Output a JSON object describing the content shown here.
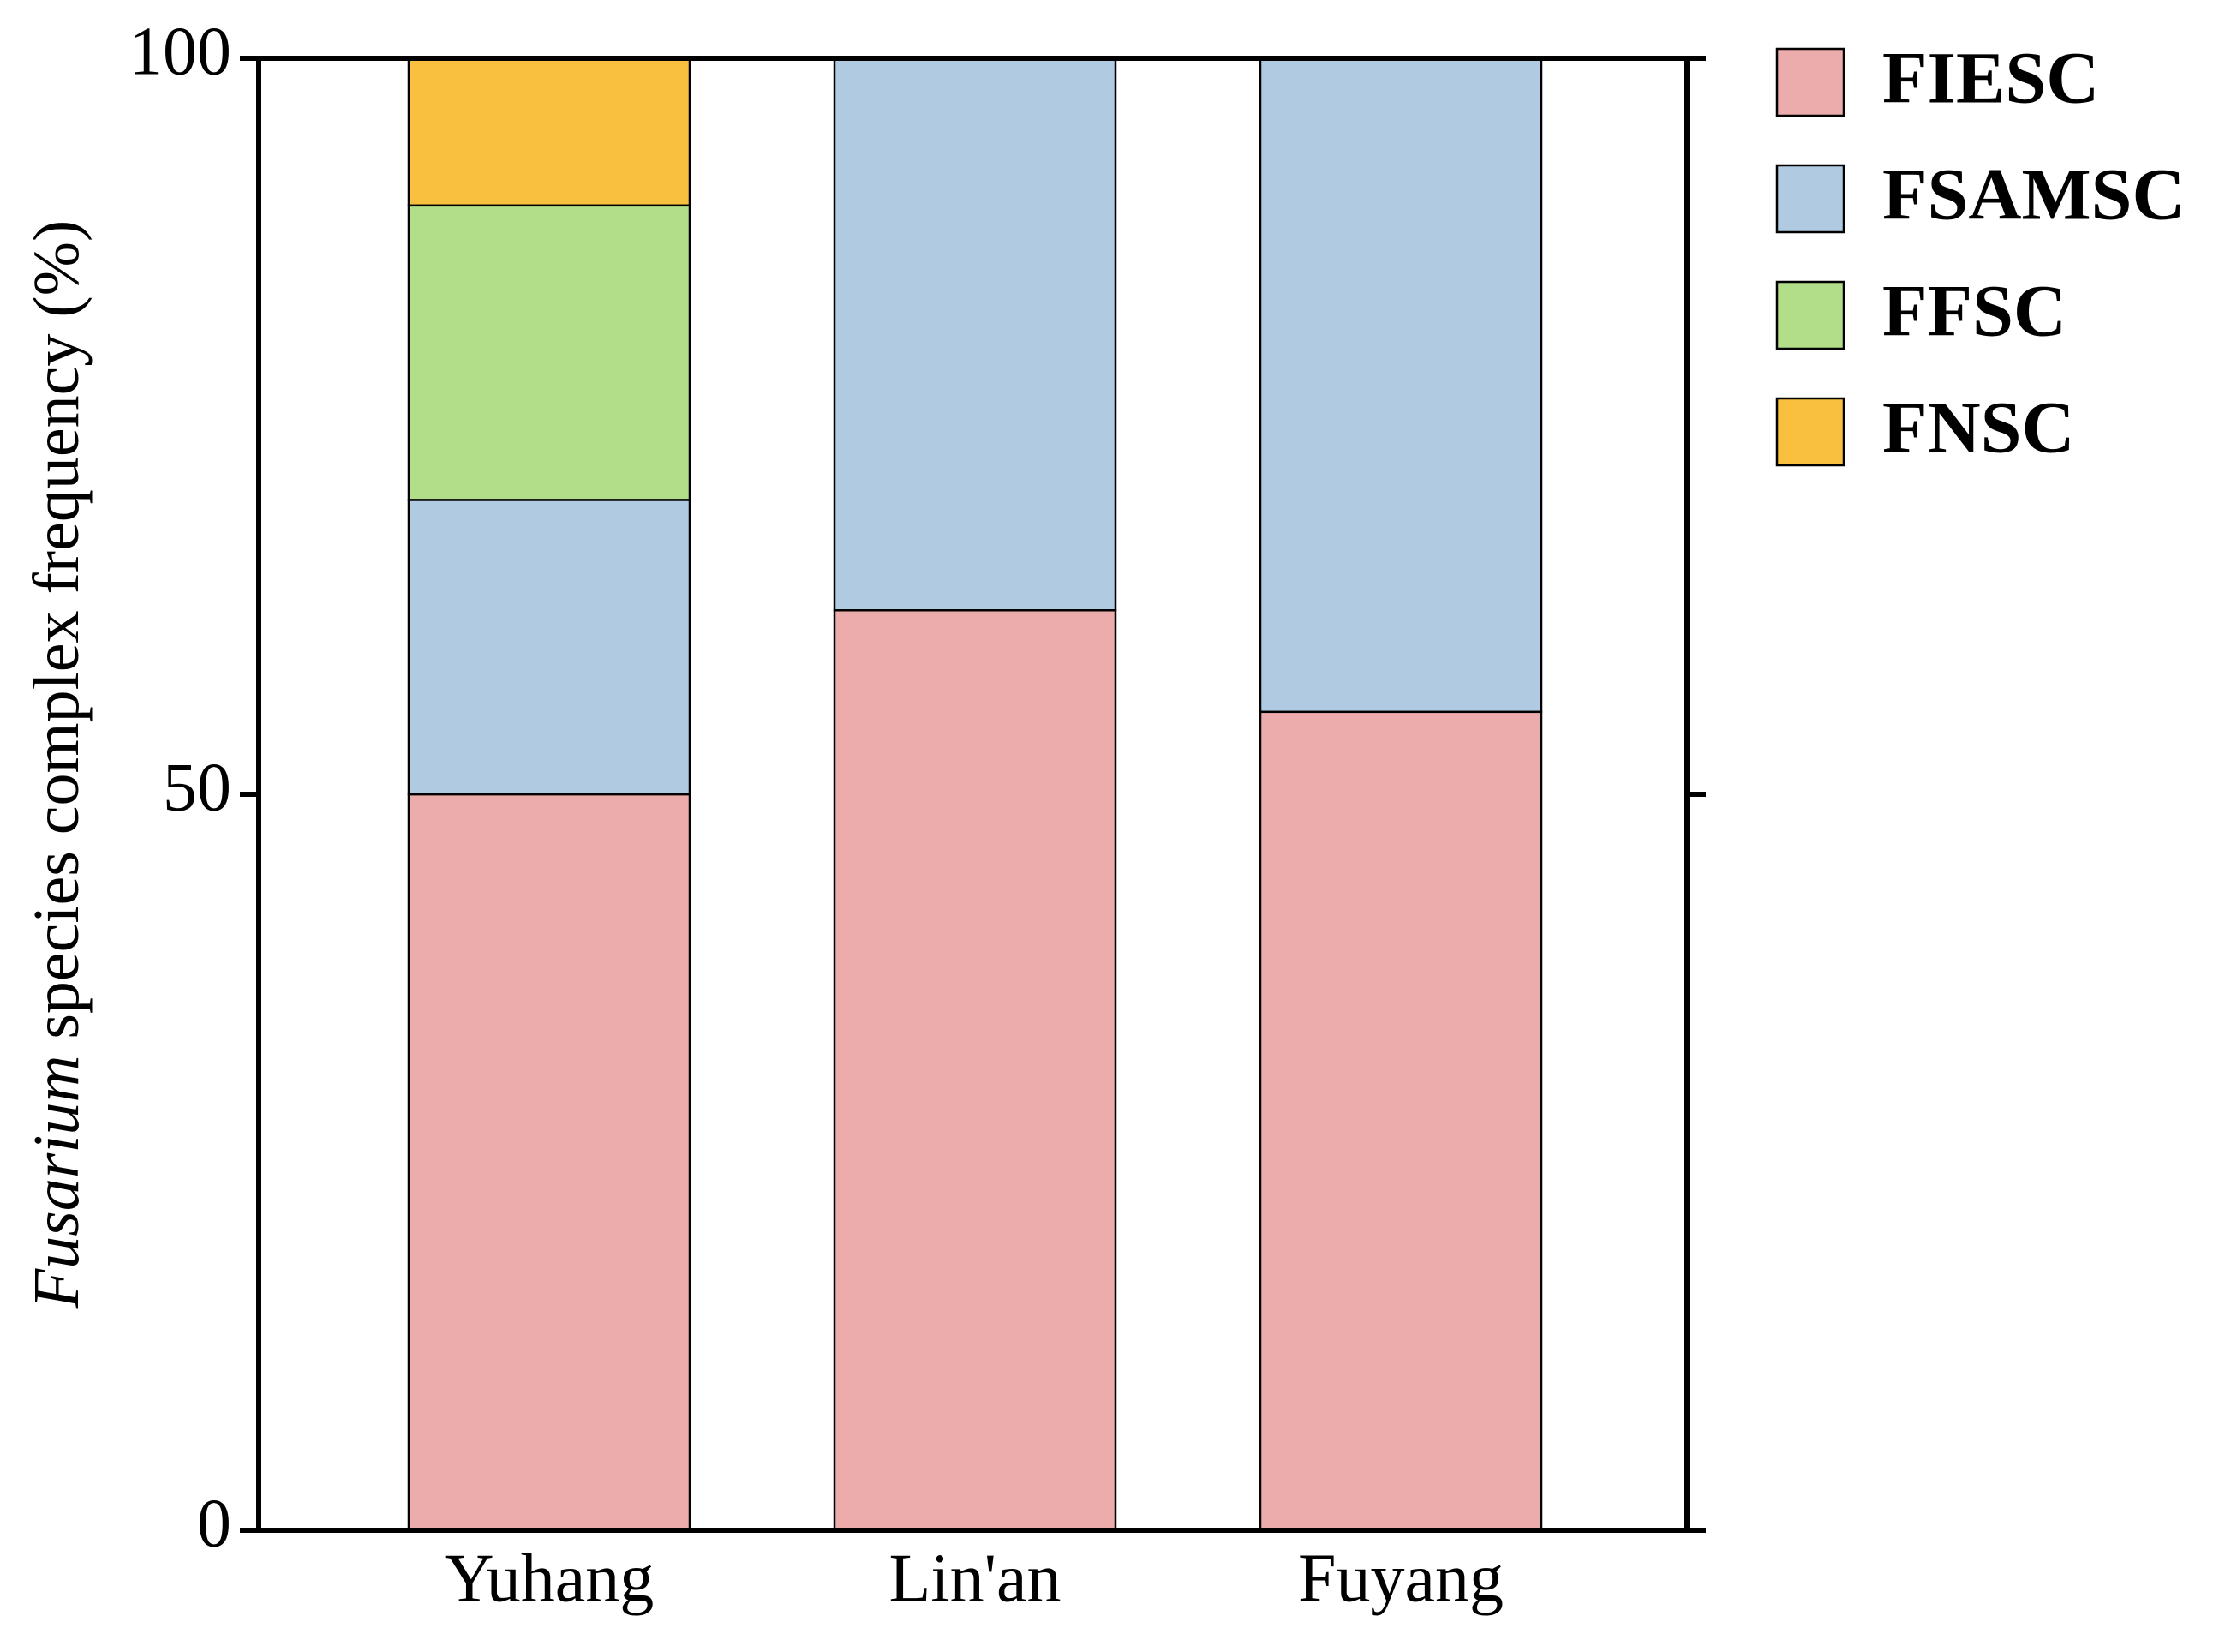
{
  "chart_data": {
    "type": "stacked-bar",
    "y_label_italic": "Fusarium",
    "y_label": "species complex frequency (%)",
    "categories": [
      "Yuhang",
      "Lin'an",
      "Fuyang"
    ],
    "series": [
      {
        "name": "FIESC",
        "color": "#ecacac",
        "values": [
          50,
          62.5,
          55.6
        ]
      },
      {
        "name": "FSAMSC",
        "color": "#b0cbe1",
        "values": [
          20,
          37.5,
          44.4
        ]
      },
      {
        "name": "FFSC",
        "color": "#b2de8a",
        "values": [
          20,
          0,
          0
        ]
      },
      {
        "name": "FNSC",
        "color": "#f9c03f",
        "values": [
          10,
          0,
          0
        ]
      }
    ],
    "ylim": [
      0,
      100
    ],
    "yticks": [
      0,
      50,
      100
    ],
    "grid": false
  }
}
